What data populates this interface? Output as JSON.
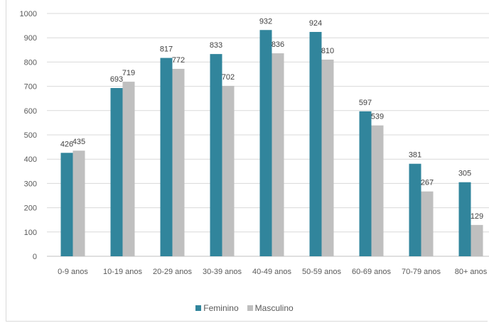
{
  "chart_data": {
    "type": "bar",
    "categories": [
      "0-9 anos",
      "10-19 anos",
      "20-29 anos",
      "30-39 anos",
      "40-49 anos",
      "50-59 anos",
      "60-69 anos",
      "70-79 anos",
      "80+ anos"
    ],
    "series": [
      {
        "name": "Feminino",
        "color": "#31859c",
        "values": [
          426,
          693,
          817,
          833,
          932,
          924,
          597,
          381,
          305
        ]
      },
      {
        "name": "Masculino",
        "color": "#bfbfbf",
        "values": [
          435,
          719,
          772,
          702,
          836,
          810,
          539,
          267,
          129
        ]
      }
    ],
    "ylim": [
      0,
      1000
    ],
    "yticks": [
      0,
      100,
      200,
      300,
      400,
      500,
      600,
      700,
      800,
      900,
      1000
    ],
    "grid": true,
    "legend_position": "bottom",
    "data_labels": true,
    "title": "",
    "xlabel": "",
    "ylabel": ""
  }
}
